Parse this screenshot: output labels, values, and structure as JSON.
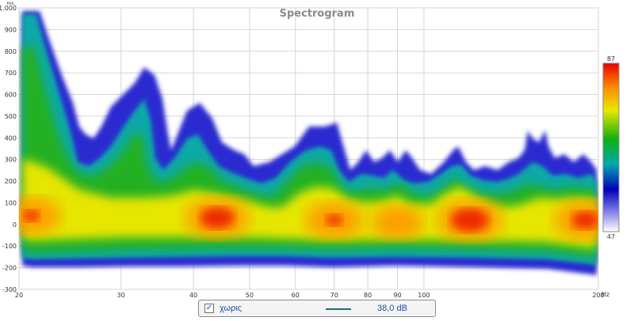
{
  "chart_data": {
    "type": "heatmap",
    "title": "Spectrogram",
    "x_unit": "Hz",
    "y_unit": "ms",
    "x_scale": "log",
    "xlim": [
      20,
      200
    ],
    "ylim": [
      -300,
      1000
    ],
    "x_tick_labels": [
      "20",
      "30",
      "40",
      "50",
      "60",
      "70",
      "80",
      "90",
      "100",
      "200"
    ],
    "x_tick_values": [
      20,
      30,
      40,
      50,
      60,
      70,
      80,
      90,
      100,
      200
    ],
    "y_tick_labels": [
      "1.000",
      "900",
      "800",
      "700",
      "600",
      "500",
      "400",
      "300",
      "200",
      "100",
      "0",
      "-100",
      "-200",
      "-300"
    ],
    "y_tick_values": [
      1000,
      900,
      800,
      700,
      600,
      500,
      400,
      300,
      200,
      100,
      0,
      -100,
      -200,
      -300
    ],
    "colorbar": {
      "min": 47,
      "max": 87,
      "min_label": "47",
      "max_label": "87"
    },
    "hot_spots": [
      {
        "freq": 21,
        "time": 40,
        "level": 80
      },
      {
        "freq": 44,
        "time": 30,
        "level": 85
      },
      {
        "freq": 70,
        "time": 20,
        "level": 80
      },
      {
        "freq": 90,
        "time": 10,
        "level": 75
      },
      {
        "freq": 120,
        "time": 20,
        "level": 86
      },
      {
        "freq": 190,
        "time": 20,
        "level": 83
      }
    ],
    "grid": true,
    "legend_placement": "bottom"
  },
  "legend": {
    "checked": true,
    "series_name": "χωρις",
    "value": "38,0 dB",
    "line_color": "#1b6f7a"
  }
}
